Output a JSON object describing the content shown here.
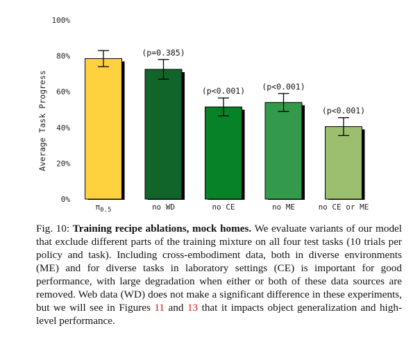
{
  "chart_data": {
    "type": "bar",
    "categories": [
      "π0.5",
      "no WD",
      "no CE",
      "no ME",
      "no CE or ME"
    ],
    "values": [
      78.5,
      72.5,
      51.5,
      54,
      40.5
    ],
    "errors": [
      4.5,
      5.5,
      5,
      5,
      5
    ],
    "annotations": [
      "",
      "(p=0.385)",
      "(p<0.001)",
      "(p<0.001)",
      "(p<0.001)"
    ],
    "colors": [
      "#fed23f",
      "#11652b",
      "#088229",
      "#329a4a",
      "#9bbf6e"
    ],
    "ylabel": "Average Task Progress",
    "ylim": [
      0,
      100
    ],
    "yticks": [
      "0%",
      "20%",
      "40%",
      "60%",
      "80%",
      "100%"
    ],
    "grid": false
  },
  "caption": {
    "label": "Fig. 10:",
    "title": "Training recipe ablations, mock homes.",
    "text_1": "We evaluate variants of our model that exclude different parts of the training mixture on all four test tasks (10 trials per policy and task). Including cross-embodiment data, both in diverse environments (ME) and for diverse tasks in laboratory settings (CE) is important for good performance, with large degradation when either or both of these data sources are removed. Web data (WD) does not make a significant difference in these experiments, but we will see in Figures",
    "ref_1": "11",
    "and": "and",
    "ref_2": "13",
    "text_2": "that it impacts object generalization and high-level performance."
  }
}
